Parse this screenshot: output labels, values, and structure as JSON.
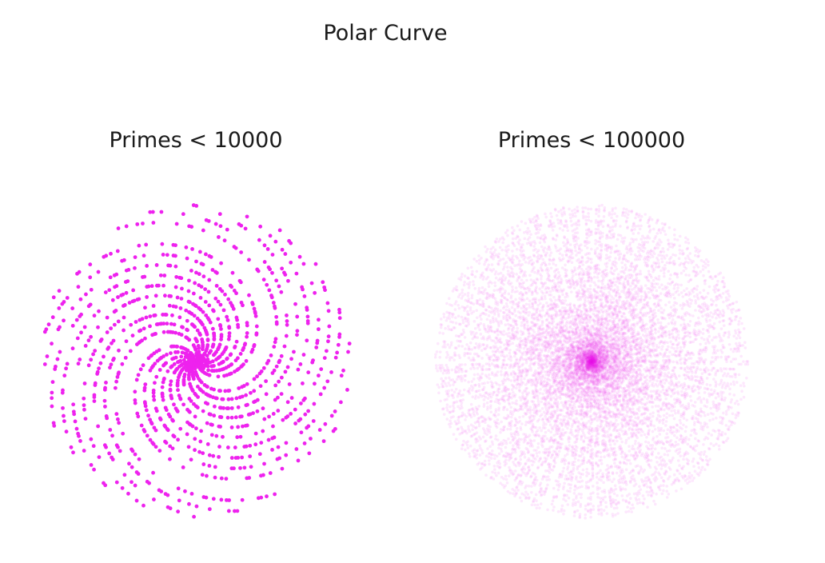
{
  "figure": {
    "title": "Polar Curve"
  },
  "chart_data": [
    {
      "type": "scatter",
      "coordinate_system": "polar",
      "title": "Primes < 10000",
      "point_rule": "each prime p plotted at (r = p, theta = p radians)",
      "x_limit": 10000,
      "point_count": 1229,
      "color": "#ee22ee",
      "point_alpha": 1.0,
      "axes_visible": false,
      "grid": false
    },
    {
      "type": "scatter",
      "coordinate_system": "polar",
      "title": "Primes < 100000",
      "point_rule": "each prime p plotted at (r = p, theta = p radians)",
      "x_limit": 100000,
      "point_count": 9592,
      "color": "#ee22ee",
      "point_alpha": 0.1,
      "axes_visible": false,
      "grid": false
    }
  ]
}
